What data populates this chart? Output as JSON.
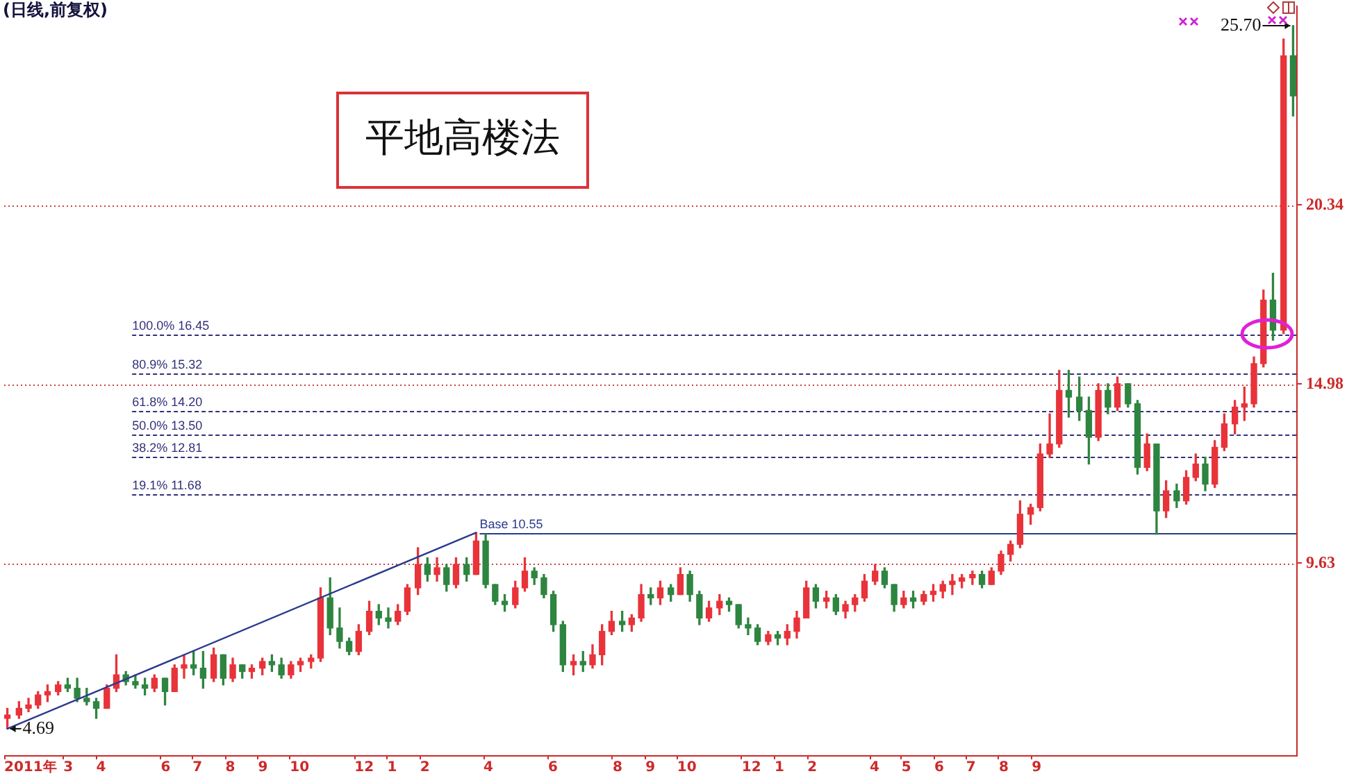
{
  "chart_data": {
    "type": "candlestick",
    "title": "(日线,前复权)",
    "x": [
      "2011-01-07",
      "2011-01-18",
      "2011-01-27",
      "2011-02-05",
      "2011-02-14",
      "2011-02-24",
      "2011-03-05",
      "2011-03-14",
      "2011-03-23",
      "2011-04-01",
      "2011-04-11",
      "2011-04-20",
      "2011-04-29",
      "2011-05-08",
      "2011-05-17",
      "2011-05-26",
      "2011-06-05",
      "2011-06-14",
      "2011-06-23",
      "2011-07-02",
      "2011-07-11",
      "2011-07-21",
      "2011-07-30",
      "2011-08-08",
      "2011-08-17",
      "2011-08-26",
      "2011-09-05",
      "2011-09-14",
      "2011-09-23",
      "2011-10-02",
      "2011-10-11",
      "2011-10-21",
      "2011-10-30",
      "2011-11-08",
      "2011-11-17",
      "2011-11-26",
      "2011-12-05",
      "2011-12-15",
      "2011-12-24",
      "2012-01-02",
      "2012-01-11",
      "2012-01-20",
      "2012-01-30",
      "2012-02-08",
      "2012-02-17",
      "2012-02-26",
      "2012-03-06",
      "2012-03-16",
      "2012-03-25",
      "2012-04-03",
      "2012-04-12",
      "2012-04-21",
      "2012-05-01",
      "2012-05-10",
      "2012-05-19",
      "2012-05-28",
      "2012-06-06",
      "2012-06-15",
      "2012-06-25",
      "2012-07-04",
      "2012-07-13",
      "2012-07-22",
      "2012-07-31",
      "2012-08-10",
      "2012-08-19",
      "2012-08-28",
      "2012-09-06",
      "2012-09-15",
      "2012-09-25",
      "2012-10-04",
      "2012-10-13",
      "2012-10-22",
      "2012-10-31",
      "2012-11-10",
      "2012-11-19",
      "2012-11-28",
      "2012-12-07",
      "2012-12-16",
      "2012-12-26",
      "2013-01-04",
      "2013-01-13",
      "2013-01-22",
      "2013-01-31",
      "2013-02-09",
      "2013-02-19",
      "2013-02-28",
      "2013-03-09",
      "2013-03-18",
      "2013-03-27",
      "2013-04-06",
      "2013-04-15",
      "2013-04-24",
      "2013-05-03",
      "2013-05-12",
      "2013-05-22",
      "2013-05-31",
      "2013-06-09",
      "2013-06-18",
      "2013-06-27",
      "2013-07-07",
      "2013-07-16",
      "2013-07-25",
      "2013-08-03",
      "2013-08-12",
      "2013-08-21",
      "2013-08-31",
      "2013-09-09",
      "2013-09-18",
      "2013-09-27",
      "2013-10-06",
      "2013-10-16",
      "2013-10-25",
      "2013-11-03",
      "2013-11-12",
      "2013-11-21",
      "2013-12-01",
      "2013-12-10",
      "2013-12-19",
      "2013-12-28",
      "2014-01-06",
      "2014-01-16",
      "2014-01-25",
      "2014-02-03",
      "2014-02-12",
      "2014-02-21",
      "2014-03-02",
      "2014-03-12",
      "2014-03-21",
      "2014-03-30",
      "2014-04-08",
      "2014-04-17",
      "2014-04-27",
      "2014-05-06"
    ],
    "ohlc": [
      [
        5.0,
        5.3,
        4.69,
        5.1
      ],
      [
        5.1,
        5.5,
        5.0,
        5.3
      ],
      [
        5.3,
        5.6,
        5.2,
        5.4
      ],
      [
        5.4,
        5.8,
        5.3,
        5.7
      ],
      [
        5.7,
        6.0,
        5.5,
        5.8
      ],
      [
        5.8,
        6.1,
        5.7,
        6.0
      ],
      [
        6.0,
        6.2,
        5.8,
        5.9
      ],
      [
        5.9,
        6.2,
        5.5,
        5.6
      ],
      [
        5.6,
        5.9,
        5.4,
        5.5
      ],
      [
        5.5,
        5.6,
        5.0,
        5.3
      ],
      [
        5.3,
        6.0,
        5.3,
        5.9
      ],
      [
        5.9,
        6.9,
        5.8,
        6.3
      ],
      [
        6.3,
        6.4,
        6.0,
        6.1
      ],
      [
        6.1,
        6.3,
        5.9,
        6.0
      ],
      [
        6.0,
        6.2,
        5.7,
        5.9
      ],
      [
        5.9,
        6.3,
        5.8,
        6.2
      ],
      [
        6.2,
        6.2,
        5.4,
        5.8
      ],
      [
        5.8,
        6.6,
        5.8,
        6.5
      ],
      [
        6.5,
        6.9,
        6.2,
        6.6
      ],
      [
        6.6,
        7.0,
        6.3,
        6.5
      ],
      [
        6.5,
        7.0,
        5.9,
        6.2
      ],
      [
        6.2,
        7.1,
        6.1,
        6.9
      ],
      [
        6.9,
        6.9,
        6.0,
        6.2
      ],
      [
        6.2,
        6.8,
        6.1,
        6.6
      ],
      [
        6.6,
        6.6,
        6.2,
        6.4
      ],
      [
        6.4,
        6.6,
        6.2,
        6.5
      ],
      [
        6.5,
        6.8,
        6.3,
        6.7
      ],
      [
        6.7,
        6.9,
        6.4,
        6.6
      ],
      [
        6.6,
        6.8,
        6.2,
        6.3
      ],
      [
        6.3,
        6.7,
        6.2,
        6.6
      ],
      [
        6.6,
        6.8,
        6.4,
        6.7
      ],
      [
        6.7,
        6.9,
        6.5,
        6.8
      ],
      [
        6.8,
        8.9,
        6.7,
        8.6
      ],
      [
        8.6,
        9.2,
        7.5,
        7.7
      ],
      [
        7.7,
        8.3,
        7.1,
        7.3
      ],
      [
        7.3,
        7.4,
        6.9,
        7.0
      ],
      [
        7.0,
        7.8,
        6.9,
        7.6
      ],
      [
        7.6,
        8.5,
        7.5,
        8.2
      ],
      [
        8.2,
        8.4,
        7.8,
        8.0
      ],
      [
        8.0,
        8.3,
        7.7,
        7.9
      ],
      [
        7.9,
        8.4,
        7.8,
        8.2
      ],
      [
        8.2,
        9.0,
        8.1,
        8.9
      ],
      [
        8.9,
        10.1,
        8.7,
        9.6
      ],
      [
        9.6,
        9.8,
        9.1,
        9.3
      ],
      [
        9.3,
        9.8,
        9.1,
        9.5
      ],
      [
        9.5,
        9.6,
        8.8,
        9.0
      ],
      [
        9.0,
        9.8,
        8.9,
        9.6
      ],
      [
        9.6,
        9.8,
        9.1,
        9.3
      ],
      [
        9.3,
        10.55,
        9.3,
        10.3
      ],
      [
        10.3,
        10.5,
        8.9,
        9.0
      ],
      [
        9.0,
        9.0,
        8.4,
        8.5
      ],
      [
        8.5,
        8.7,
        8.2,
        8.4
      ],
      [
        8.4,
        9.1,
        8.3,
        8.9
      ],
      [
        8.9,
        9.8,
        8.8,
        9.4
      ],
      [
        9.4,
        9.5,
        9.0,
        9.2
      ],
      [
        9.2,
        9.3,
        8.6,
        8.7
      ],
      [
        8.7,
        8.8,
        7.6,
        7.8
      ],
      [
        7.8,
        7.9,
        6.4,
        6.6
      ],
      [
        6.6,
        6.9,
        6.3,
        6.7
      ],
      [
        6.7,
        7.0,
        6.4,
        6.6
      ],
      [
        6.6,
        7.2,
        6.5,
        6.9
      ],
      [
        6.9,
        7.8,
        6.6,
        7.6
      ],
      [
        7.6,
        8.2,
        7.5,
        7.9
      ],
      [
        7.9,
        8.2,
        7.6,
        7.8
      ],
      [
        7.8,
        8.1,
        7.6,
        8.0
      ],
      [
        8.0,
        9.0,
        7.9,
        8.7
      ],
      [
        8.7,
        8.9,
        8.4,
        8.6
      ],
      [
        8.6,
        9.1,
        8.4,
        8.9
      ],
      [
        8.9,
        9.0,
        8.5,
        8.7
      ],
      [
        8.7,
        9.5,
        8.7,
        9.3
      ],
      [
        9.3,
        9.4,
        8.5,
        8.7
      ],
      [
        8.7,
        8.8,
        7.8,
        8.0
      ],
      [
        8.0,
        8.5,
        7.9,
        8.3
      ],
      [
        8.3,
        8.7,
        8.1,
        8.5
      ],
      [
        8.5,
        8.6,
        8.2,
        8.4
      ],
      [
        8.4,
        8.4,
        7.7,
        7.8
      ],
      [
        7.8,
        8.0,
        7.5,
        7.7
      ],
      [
        7.7,
        7.8,
        7.2,
        7.3
      ],
      [
        7.3,
        7.6,
        7.2,
        7.5
      ],
      [
        7.5,
        7.6,
        7.2,
        7.4
      ],
      [
        7.4,
        7.8,
        7.2,
        7.6
      ],
      [
        7.6,
        8.2,
        7.4,
        8.0
      ],
      [
        8.0,
        9.1,
        8.0,
        8.9
      ],
      [
        8.9,
        9.0,
        8.3,
        8.5
      ],
      [
        8.5,
        8.8,
        8.3,
        8.6
      ],
      [
        8.6,
        8.7,
        8.1,
        8.2
      ],
      [
        8.2,
        8.5,
        8.0,
        8.4
      ],
      [
        8.4,
        8.7,
        8.2,
        8.6
      ],
      [
        8.6,
        9.3,
        8.5,
        9.1
      ],
      [
        9.1,
        9.6,
        9.0,
        9.4
      ],
      [
        9.4,
        9.5,
        8.9,
        9.0
      ],
      [
        9.0,
        9.0,
        8.2,
        8.4
      ],
      [
        8.4,
        8.8,
        8.3,
        8.6
      ],
      [
        8.6,
        8.8,
        8.3,
        8.5
      ],
      [
        8.5,
        8.8,
        8.4,
        8.7
      ],
      [
        8.7,
        9.0,
        8.5,
        8.8
      ],
      [
        8.8,
        9.1,
        8.6,
        9.0
      ],
      [
        9.0,
        9.3,
        8.7,
        9.1
      ],
      [
        9.1,
        9.3,
        8.9,
        9.2
      ],
      [
        9.2,
        9.4,
        9.0,
        9.3
      ],
      [
        9.3,
        9.4,
        8.9,
        9.0
      ],
      [
        9.0,
        9.5,
        9.0,
        9.4
      ],
      [
        9.4,
        10.0,
        9.3,
        9.9
      ],
      [
        9.9,
        10.3,
        9.7,
        10.2
      ],
      [
        10.2,
        11.5,
        10.1,
        11.1
      ],
      [
        11.1,
        11.4,
        10.8,
        11.3
      ],
      [
        11.3,
        13.2,
        11.2,
        12.9
      ],
      [
        12.9,
        14.1,
        12.8,
        13.2
      ],
      [
        13.2,
        15.4,
        13.1,
        14.8
      ],
      [
        14.8,
        15.4,
        14.0,
        14.6
      ],
      [
        14.6,
        15.2,
        13.9,
        14.2
      ],
      [
        14.2,
        14.6,
        12.6,
        13.4
      ],
      [
        13.4,
        15.0,
        13.3,
        14.8
      ],
      [
        14.8,
        15.0,
        14.1,
        14.3
      ],
      [
        14.3,
        15.2,
        14.2,
        15.0
      ],
      [
        15.0,
        15.0,
        14.3,
        14.4
      ],
      [
        14.4,
        14.5,
        12.3,
        12.5
      ],
      [
        12.5,
        13.5,
        12.4,
        13.2
      ],
      [
        13.2,
        13.2,
        10.5,
        11.2
      ],
      [
        11.2,
        12.1,
        11.0,
        11.8
      ],
      [
        11.8,
        12.0,
        11.3,
        11.5
      ],
      [
        11.5,
        12.4,
        11.4,
        12.2
      ],
      [
        12.2,
        12.9,
        12.1,
        12.6
      ],
      [
        12.6,
        12.8,
        11.8,
        12.0
      ],
      [
        12.0,
        13.3,
        11.9,
        13.1
      ],
      [
        13.1,
        14.1,
        13.0,
        13.8
      ],
      [
        13.8,
        14.5,
        13.5,
        14.3
      ],
      [
        14.3,
        14.9,
        13.9,
        14.4
      ],
      [
        14.4,
        15.8,
        14.3,
        15.6
      ],
      [
        15.6,
        17.8,
        15.5,
        17.5
      ],
      [
        17.5,
        18.3,
        16.3,
        16.6
      ],
      [
        16.6,
        25.3,
        16.5,
        24.8
      ],
      [
        24.8,
        25.7,
        23.0,
        23.6
      ]
    ],
    "colors": [
      "#e8333a",
      "#e8333a",
      "#e8333a",
      "#e8333a",
      "#e8333a",
      "#e8333a",
      "#2e8540",
      "#2e8540",
      "#2e8540",
      "#2e8540",
      "#e8333a",
      "#e8333a",
      "#2e8540",
      "#2e8540",
      "#2e8540",
      "#e8333a",
      "#2e8540",
      "#e8333a",
      "#e8333a",
      "#2e8540",
      "#2e8540",
      "#e8333a",
      "#2e8540",
      "#e8333a",
      "#2e8540",
      "#e8333a",
      "#e8333a",
      "#2e8540",
      "#2e8540",
      "#e8333a",
      "#e8333a",
      "#e8333a",
      "#e8333a",
      "#2e8540",
      "#2e8540",
      "#2e8540",
      "#e8333a",
      "#e8333a",
      "#2e8540",
      "#2e8540",
      "#e8333a",
      "#e8333a",
      "#e8333a",
      "#2e8540",
      "#e8333a",
      "#2e8540",
      "#e8333a",
      "#2e8540",
      "#e8333a",
      "#2e8540",
      "#2e8540",
      "#2e8540",
      "#e8333a",
      "#e8333a",
      "#2e8540",
      "#2e8540",
      "#2e8540",
      "#2e8540",
      "#e8333a",
      "#2e8540",
      "#e8333a",
      "#e8333a",
      "#e8333a",
      "#2e8540",
      "#e8333a",
      "#e8333a",
      "#2e8540",
      "#e8333a",
      "#2e8540",
      "#e8333a",
      "#2e8540",
      "#2e8540",
      "#e8333a",
      "#e8333a",
      "#2e8540",
      "#2e8540",
      "#2e8540",
      "#2e8540",
      "#e8333a",
      "#2e8540",
      "#e8333a",
      "#e8333a",
      "#e8333a",
      "#2e8540",
      "#e8333a",
      "#2e8540",
      "#e8333a",
      "#e8333a",
      "#e8333a",
      "#e8333a",
      "#2e8540",
      "#2e8540",
      "#e8333a",
      "#2e8540",
      "#e8333a",
      "#e8333a",
      "#e8333a",
      "#e8333a",
      "#e8333a",
      "#e8333a",
      "#2e8540",
      "#e8333a",
      "#e8333a",
      "#e8333a",
      "#e8333a",
      "#e8333a",
      "#e8333a",
      "#e8333a",
      "#e8333a",
      "#2e8540",
      "#2e8540",
      "#2e8540",
      "#e8333a",
      "#2e8540",
      "#e8333a",
      "#2e8540",
      "#2e8540",
      "#e8333a",
      "#2e8540",
      "#e8333a",
      "#2e8540",
      "#e8333a",
      "#e8333a",
      "#2e8540",
      "#e8333a",
      "#e8333a",
      "#e8333a",
      "#e8333a",
      "#e8333a",
      "#e8333a",
      "#2e8540",
      "#e8333a",
      "#2e8540"
    ],
    "series": [
      {
        "type": "line",
        "x": [
          "2011-01-07",
          "2012-03-25"
        ],
        "values": [
          4.69,
          10.55
        ],
        "color": "#2b3a8c"
      }
    ],
    "xlim": [
      "2011-01-04",
      "2014-05-09"
    ],
    "xticks": [
      {
        "value": "2011-01-04",
        "label": "2011年"
      },
      {
        "value": "2011-03",
        "label": "3"
      },
      {
        "value": "2011-04",
        "label": "4"
      },
      {
        "value": "2011-06",
        "label": "6"
      },
      {
        "value": "2011-07",
        "label": "7"
      },
      {
        "value": "2011-08",
        "label": "8"
      },
      {
        "value": "2011-09",
        "label": "9"
      },
      {
        "value": "2011-10",
        "label": "10"
      },
      {
        "value": "2011-12",
        "label": "12"
      },
      {
        "value": "2012-01",
        "label": "1"
      },
      {
        "value": "2012-02",
        "label": "2"
      },
      {
        "value": "2012-04",
        "label": "4"
      },
      {
        "value": "2012-06",
        "label": "6"
      },
      {
        "value": "2012-08",
        "label": "8"
      },
      {
        "value": "2012-09",
        "label": "9"
      },
      {
        "value": "2012-10",
        "label": "10"
      },
      {
        "value": "2012-12",
        "label": "12"
      },
      {
        "value": "2013-01",
        "label": "1"
      },
      {
        "value": "2013-02",
        "label": "2"
      },
      {
        "value": "2013-04",
        "label": "4"
      },
      {
        "value": "2013-05",
        "label": "5"
      },
      {
        "value": "2013-06",
        "label": "6"
      },
      {
        "value": "2013-07",
        "label": "7"
      },
      {
        "value": "2013-08",
        "label": "8"
      },
      {
        "value": "2013-09",
        "label": "9"
      }
    ],
    "ylim": [
      3.9,
      26.3
    ],
    "yticks": [
      9.63,
      14.98,
      20.34
    ],
    "grid": "y",
    "ref_lines": [
      {
        "axis": "y",
        "value": 10.55,
        "label": "Base 10.55",
        "color": "#2b3a8c",
        "line_style": "solid"
      },
      {
        "axis": "y",
        "value": 11.68,
        "label": "19.1% 11.68",
        "color": "#30307a",
        "line_style": "dashed"
      },
      {
        "axis": "y",
        "value": 12.81,
        "label": "38.2% 12.81",
        "color": "#30307a",
        "line_style": "dashed"
      },
      {
        "axis": "y",
        "value": 13.5,
        "label": "50.0% 13.50",
        "color": "#30307a",
        "line_style": "dashed"
      },
      {
        "axis": "y",
        "value": 14.2,
        "label": "61.8% 14.20",
        "color": "#30307a",
        "line_style": "dashed"
      },
      {
        "axis": "y",
        "value": 15.32,
        "label": "80.9% 15.32",
        "color": "#30307a",
        "line_style": "dashed"
      },
      {
        "axis": "y",
        "value": 16.45,
        "label": "100.0% 16.45",
        "color": "#30307a",
        "line_style": "dashed"
      }
    ],
    "annotations": [
      "平地高楼法",
      {
        "text": "4.69",
        "x": "2011-01-07",
        "y": 4.69
      },
      {
        "text": "25.70",
        "x": "2014-05-06",
        "y": 25.7
      }
    ]
  }
}
